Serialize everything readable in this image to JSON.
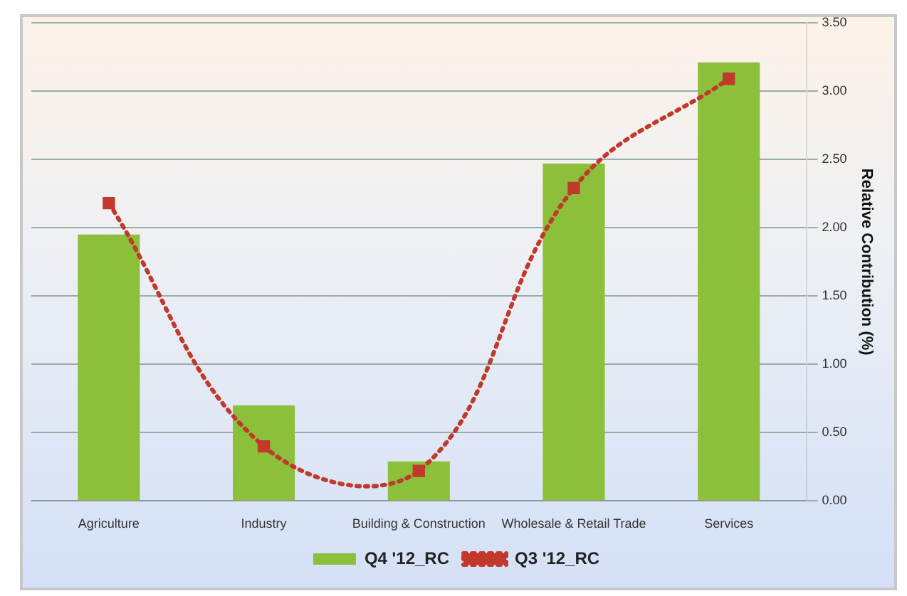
{
  "chart_data": {
    "type": "bar",
    "categories": [
      "Agriculture",
      "Industry",
      "Building & Construction",
      "Wholesale & Retail Trade",
      "Services"
    ],
    "series": [
      {
        "name": "Q4 '12_RC",
        "color": "#8cbf3a",
        "values": [
          1.95,
          0.7,
          0.29,
          2.47,
          3.21
        ]
      },
      {
        "name": "Q3 '12_RC",
        "type": "line",
        "color": "#c0392b",
        "values": [
          2.18,
          0.4,
          0.22,
          2.29,
          3.09
        ],
        "marker": "square",
        "line_style": "dotted"
      }
    ],
    "ylabel": "Relative Contribution (%)",
    "ylim": [
      0,
      3.5
    ],
    "yticks": [
      {
        "value": 0,
        "label": "0.00"
      },
      {
        "value": 0.5,
        "label": "0.50"
      },
      {
        "value": 1,
        "label": "1.00"
      },
      {
        "value": 1.5,
        "label": "1.50"
      },
      {
        "value": 2,
        "label": "2.00"
      },
      {
        "value": 2.5,
        "label": "2.50"
      },
      {
        "value": 3,
        "label": "3.00"
      },
      {
        "value": 3.5,
        "label": "3.50"
      }
    ],
    "grid": "y",
    "legend": "bottom"
  }
}
